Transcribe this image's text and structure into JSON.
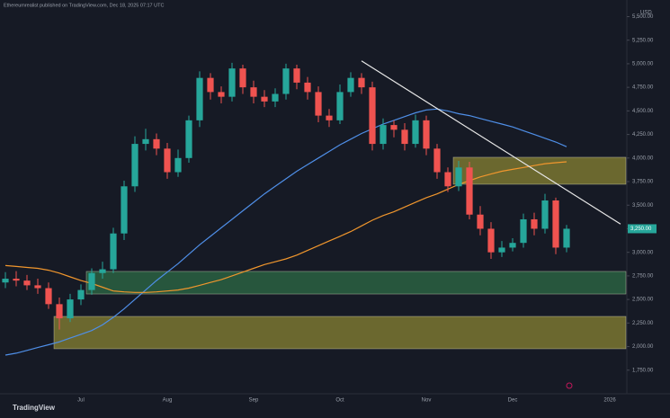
{
  "chart_data": {
    "type": "candlestick",
    "header": "Ethereumrealist published on TradingView.com, Dec 18, 2025 07:17 UTC",
    "currency": "USD",
    "brand": "TradingView",
    "categories": [
      null,
      null,
      null,
      null,
      null,
      null,
      null,
      "Jul",
      null,
      null,
      null,
      null,
      null,
      null,
      null,
      "Aug",
      null,
      null,
      null,
      null,
      null,
      null,
      null,
      "Sep",
      null,
      null,
      null,
      null,
      null,
      null,
      null,
      "Oct",
      null,
      null,
      null,
      null,
      null,
      null,
      null,
      "Nov",
      null,
      null,
      null,
      null,
      null,
      null,
      null,
      "Dec",
      null,
      null,
      null,
      null,
      null,
      null,
      null,
      null,
      "2026",
      null
    ],
    "open": [
      2680,
      2720,
      2700,
      2650,
      2620,
      2450,
      2300,
      2500,
      2600,
      2780,
      2820,
      3200,
      3700,
      4150,
      4200,
      4100,
      3850,
      4000,
      4400,
      4850,
      4700,
      4650,
      4950,
      4750,
      4650,
      4600,
      4680,
      4950,
      4800,
      4700,
      4450,
      4400,
      4700,
      4850,
      4750,
      4150,
      4350,
      4300,
      4150,
      4400,
      4100,
      3850,
      3700,
      3900,
      3400,
      3250,
      3000,
      3050,
      3100,
      3350,
      3250,
      3550,
      3050,
      null,
      null,
      null,
      null,
      null
    ],
    "high": [
      2790,
      2800,
      2760,
      2720,
      2680,
      2520,
      2560,
      2660,
      2830,
      2900,
      3260,
      3760,
      4230,
      4310,
      4260,
      4160,
      4090,
      4450,
      4920,
      4900,
      4760,
      5010,
      4990,
      4820,
      4720,
      4740,
      5000,
      4990,
      4860,
      4760,
      4520,
      4780,
      4910,
      4900,
      4810,
      4420,
      4400,
      4370,
      4460,
      4450,
      4150,
      3900,
      3970,
      3960,
      3490,
      3320,
      3120,
      3150,
      3410,
      3420,
      3620,
      3580,
      3290,
      null,
      null,
      null,
      null,
      null
    ],
    "low": [
      2620,
      2640,
      2600,
      2560,
      2400,
      2180,
      2260,
      2440,
      2550,
      2720,
      2780,
      3130,
      3640,
      4080,
      4030,
      3780,
      3800,
      3950,
      4330,
      4620,
      4580,
      4600,
      4680,
      4580,
      4540,
      4540,
      4620,
      4730,
      4620,
      4380,
      4330,
      4360,
      4650,
      4680,
      4080,
      4090,
      4220,
      4080,
      4110,
      4030,
      3780,
      3640,
      3650,
      3350,
      3180,
      2930,
      2950,
      3010,
      3050,
      3180,
      3200,
      2980,
      3000,
      null,
      null,
      null,
      null,
      null
    ],
    "close": [
      2720,
      2700,
      2650,
      2620,
      2450,
      2300,
      2500,
      2600,
      2780,
      2820,
      3200,
      3700,
      4150,
      4200,
      4100,
      3850,
      4000,
      4400,
      4850,
      4700,
      4650,
      4950,
      4750,
      4650,
      4600,
      4680,
      4950,
      4800,
      4700,
      4450,
      4400,
      4700,
      4850,
      4750,
      4150,
      4350,
      4300,
      4150,
      4400,
      4100,
      3850,
      3700,
      3900,
      3400,
      3250,
      3000,
      3050,
      3100,
      3350,
      3250,
      3550,
      3050,
      3250,
      null,
      null,
      null,
      null,
      null
    ],
    "up_color": "#26a69a",
    "down_color": "#ef5350",
    "series": [
      {
        "color": "#4f8fe8",
        "values": [
          1910,
          1930,
          1960,
          1990,
          2020,
          2050,
          2090,
          2130,
          2170,
          2230,
          2310,
          2400,
          2500,
          2600,
          2700,
          2790,
          2880,
          2980,
          3080,
          3170,
          3260,
          3350,
          3440,
          3530,
          3620,
          3700,
          3780,
          3860,
          3930,
          4000,
          4070,
          4140,
          4200,
          4260,
          4310,
          4360,
          4400,
          4440,
          4480,
          4510,
          4520,
          4500,
          4470,
          4450,
          4420,
          4390,
          4360,
          4330,
          4290,
          4250,
          4210,
          4170,
          4120,
          null,
          null,
          null,
          null,
          null
        ]
      },
      {
        "color": "#f0962d",
        "values": [
          2860,
          2850,
          2840,
          2830,
          2810,
          2780,
          2740,
          2700,
          2670,
          2630,
          2590,
          2580,
          2575,
          2575,
          2580,
          2590,
          2600,
          2620,
          2650,
          2680,
          2710,
          2750,
          2790,
          2830,
          2870,
          2900,
          2930,
          2970,
          3020,
          3070,
          3120,
          3170,
          3220,
          3280,
          3340,
          3390,
          3430,
          3480,
          3530,
          3580,
          3620,
          3670,
          3720,
          3760,
          3800,
          3830,
          3860,
          3880,
          3900,
          3920,
          3940,
          3950,
          3960,
          null,
          null,
          null,
          null,
          null
        ]
      }
    ],
    "zones": [
      {
        "start": 42,
        "from": 3722,
        "to": 4008,
        "color": "rgba(210,200,60,0.45)"
      },
      {
        "start": 8,
        "from": 2558,
        "to": 2797,
        "color": "rgba(60,160,90,0.45)"
      },
      {
        "start": 5,
        "from": 1977,
        "to": 2320,
        "color": "rgba(210,200,60,0.45)"
      }
    ],
    "trendline": {
      "x": [
        33,
        57
      ],
      "y": [
        5030,
        3300
      ],
      "color": "#e8e8e8"
    },
    "last_price": {
      "value": 3250,
      "label": "3,250.00"
    },
    "ylim": [
      1500,
      5600
    ],
    "yticks": [
      {
        "value": 1750,
        "label": "1,750.00"
      },
      {
        "value": 2000,
        "label": "2,000.00"
      },
      {
        "value": 2250,
        "label": "2,250.00"
      },
      {
        "value": 2500,
        "label": "2,500.00"
      },
      {
        "value": 2750,
        "label": "2,750.00"
      },
      {
        "value": 3000,
        "label": "3,000.00"
      },
      {
        "value": 3250,
        "label": "3,250.00"
      },
      {
        "value": 3500,
        "label": "3,500.00"
      },
      {
        "value": 3750,
        "label": "3,750.00"
      },
      {
        "value": 4000,
        "label": "4,000.00"
      },
      {
        "value": 4250,
        "label": "4,250.00"
      },
      {
        "value": 4500,
        "label": "4,500.00"
      },
      {
        "value": 4750,
        "label": "4,750.00"
      },
      {
        "value": 5000,
        "label": "5,000.00"
      },
      {
        "value": 5250,
        "label": "5,250.00"
      },
      {
        "value": 5500,
        "label": "5,500.00"
      }
    ]
  }
}
